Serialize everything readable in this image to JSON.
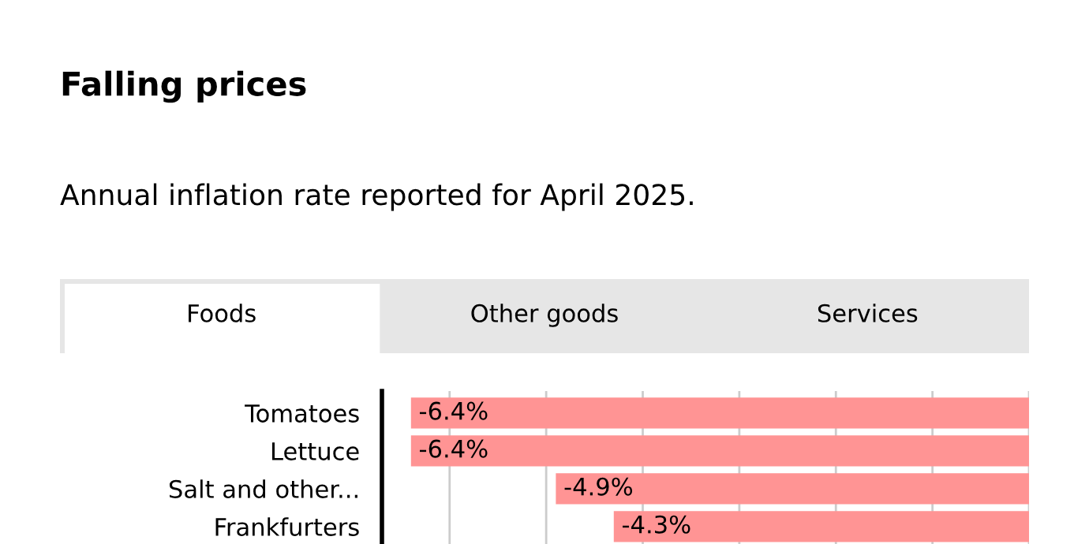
{
  "chart_data": {
    "type": "bar",
    "orientation": "horizontal",
    "title": "Falling prices",
    "subtitle": "Annual inflation rate reported for April 2025.",
    "annotations": [
      "Foods",
      "Other goods",
      "Services"
    ],
    "categories": [
      "Tomatoes",
      "Lettuce",
      "Salt and other...",
      "Frankfurters"
    ],
    "values": [
      -6.4,
      -6.4,
      -4.9,
      -4.3
    ],
    "color": "#ff9494",
    "value_labels": [
      "-6.4%",
      "-6.4%",
      "-4.9%",
      "-4.3%"
    ],
    "grid": "x",
    "tick_labels": "y"
  }
}
